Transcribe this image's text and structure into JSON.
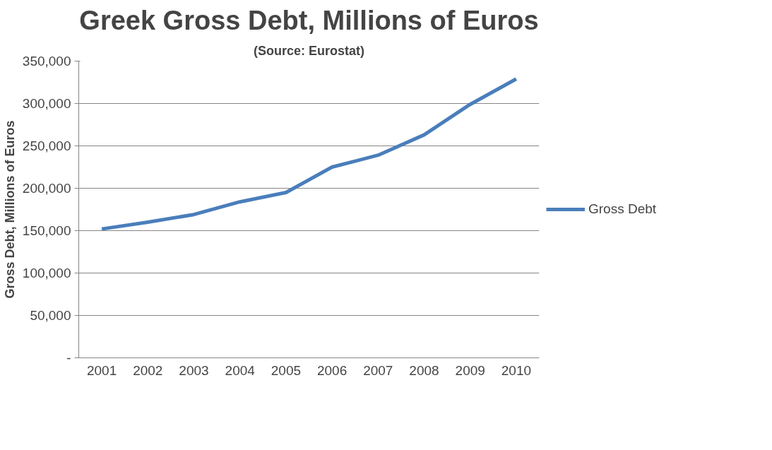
{
  "chart_data": {
    "type": "line",
    "title": "Greek Gross Debt, Millions of Euros",
    "subtitle": "(Source: Eurostat)",
    "ylabel": "Gross Debt, Millions of Euros",
    "categories": [
      "2001",
      "2002",
      "2003",
      "2004",
      "2005",
      "2006",
      "2007",
      "2008",
      "2009",
      "2010"
    ],
    "series": [
      {
        "name": "Gross Debt",
        "color": "#4a7ebb",
        "values": [
          152000,
          160000,
          169000,
          184000,
          195000,
          225000,
          239000,
          263000,
          299000,
          329000
        ]
      }
    ],
    "ylim": [
      0,
      350000
    ],
    "yticks": [
      {
        "value": 0,
        "label": "-"
      },
      {
        "value": 50000,
        "label": "50,000"
      },
      {
        "value": 100000,
        "label": "100,000"
      },
      {
        "value": 150000,
        "label": "150,000"
      },
      {
        "value": 200000,
        "label": "200,000"
      },
      {
        "value": 250000,
        "label": "250,000"
      },
      {
        "value": 300000,
        "label": "300,000"
      },
      {
        "value": 350000,
        "label": "350,000"
      }
    ],
    "grid": "y",
    "legend": "right",
    "marker": "none",
    "line_style": "solid"
  }
}
